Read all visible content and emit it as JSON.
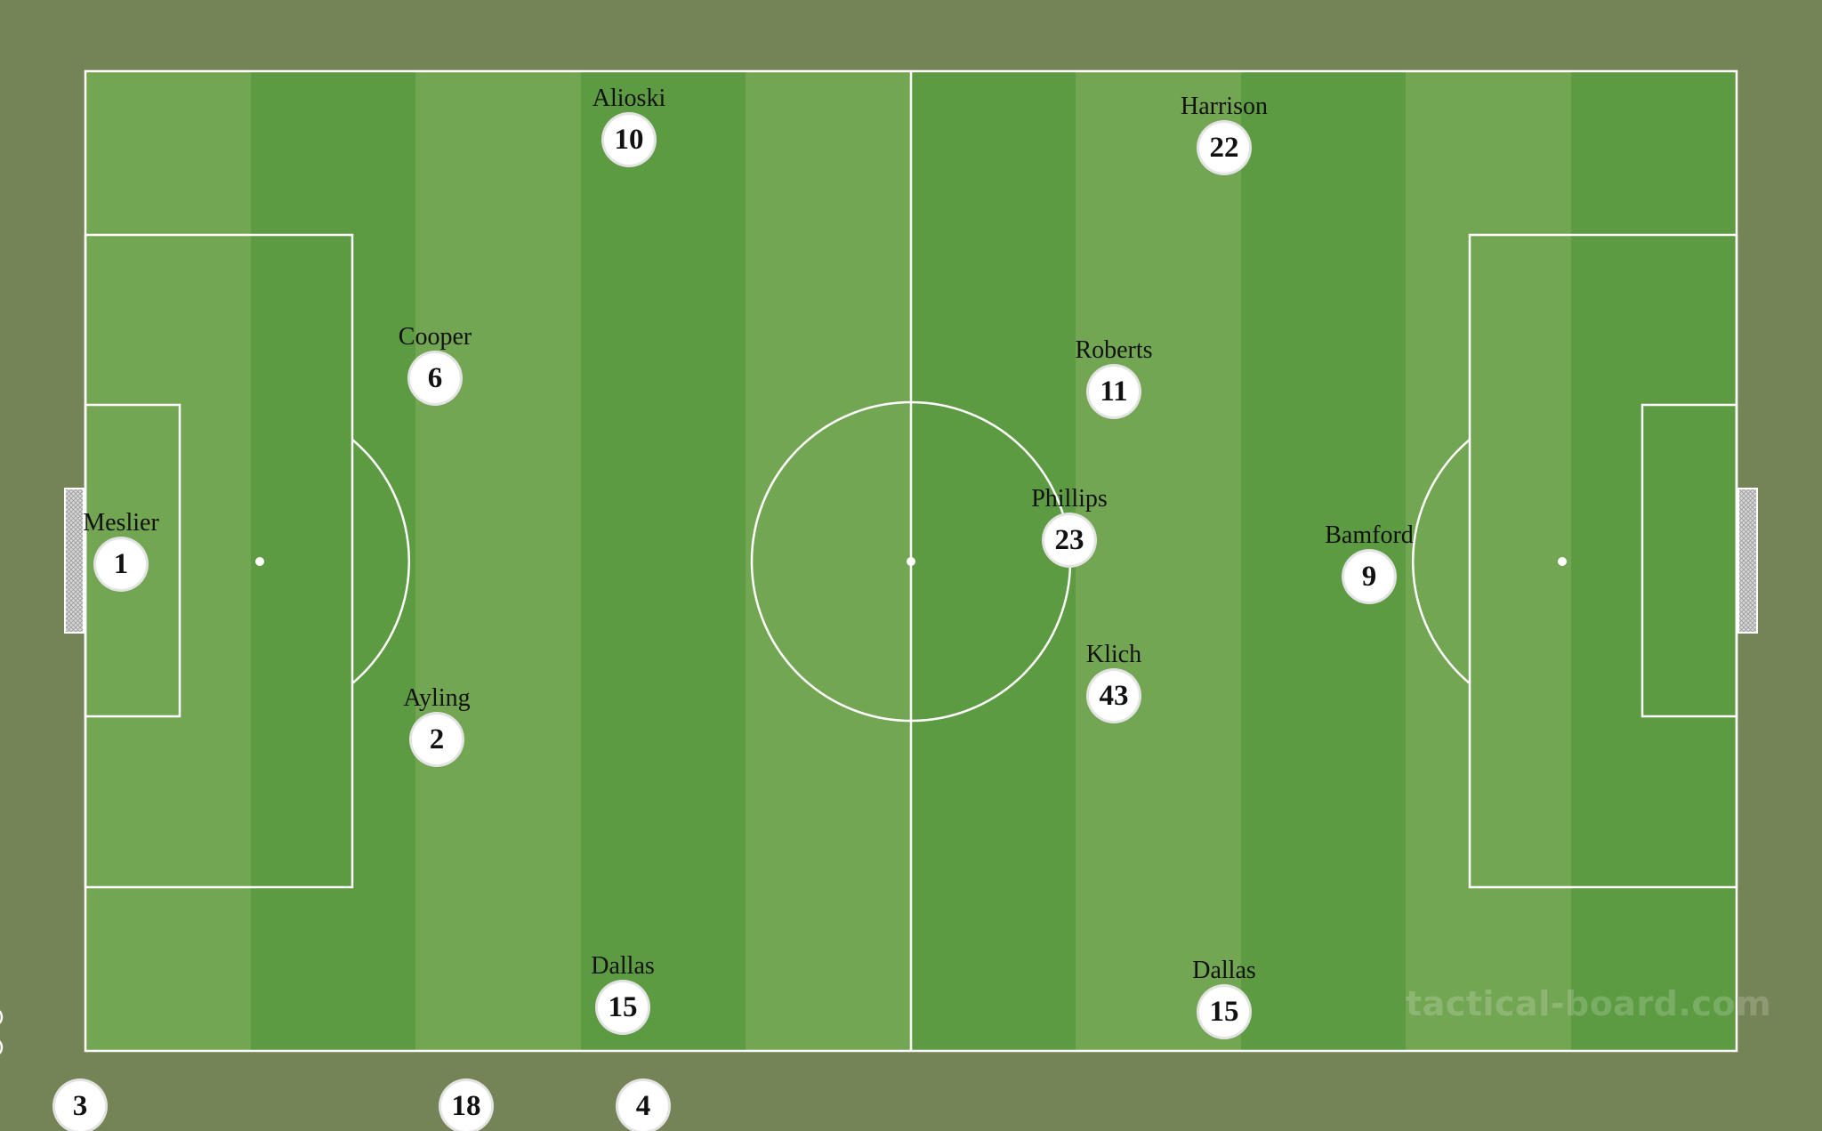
{
  "colors": {
    "background": "#758456",
    "stripe_light": "#73a653",
    "stripe_dark": "#5d9b43",
    "lines": "#ffffff"
  },
  "pitch": {
    "watermark": "tactical-board.com"
  },
  "players": [
    {
      "name": "Meslier",
      "number": "1"
    },
    {
      "name": "Cooper",
      "number": "6"
    },
    {
      "name": "Ayling",
      "number": "2"
    },
    {
      "name": "Alioski",
      "number": "10"
    },
    {
      "name": "Dallas",
      "number": "15"
    },
    {
      "name": "Harrison",
      "number": "22"
    },
    {
      "name": "Roberts",
      "number": "11"
    },
    {
      "name": "Phillips",
      "number": "23"
    },
    {
      "name": "Klich",
      "number": "43"
    },
    {
      "name": "Bamford",
      "number": "9"
    },
    {
      "name": "Dallas",
      "number": "15"
    }
  ],
  "bench": [
    {
      "number": "3"
    },
    {
      "number": "18"
    },
    {
      "number": "4"
    }
  ]
}
